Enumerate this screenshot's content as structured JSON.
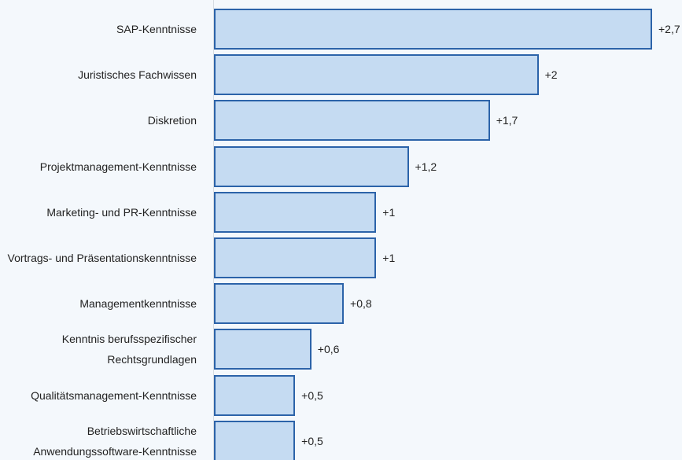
{
  "chart_data": {
    "type": "bar",
    "orientation": "horizontal",
    "categories": [
      "SAP-Kenntnisse",
      "Juristisches Fachwissen",
      "Diskretion",
      "Projektmanagement-Kenntnisse",
      "Marketing- und PR-Kenntnisse",
      "Vortrags- und Präsentationskenntnisse",
      "Managementkenntnisse",
      "Kenntnis berufsspezifischer Rechtsgrundlagen",
      "Qualitätsmanagement-Kenntnisse",
      "Betriebswirtschaftliche Anwendungssoftware-Kenntnisse"
    ],
    "values": [
      2.7,
      2,
      1.7,
      1.2,
      1,
      1,
      0.8,
      0.6,
      0.5,
      0.5
    ],
    "value_labels": [
      "+2,7",
      "+2",
      "+1,7",
      "+1,2",
      "+1",
      "+1",
      "+0,8",
      "+0,6",
      "+0,5",
      "+0,5"
    ],
    "color": "#c5dbf2",
    "edge_color": "#2c63a9",
    "xlim": [
      0,
      2.7
    ]
  }
}
